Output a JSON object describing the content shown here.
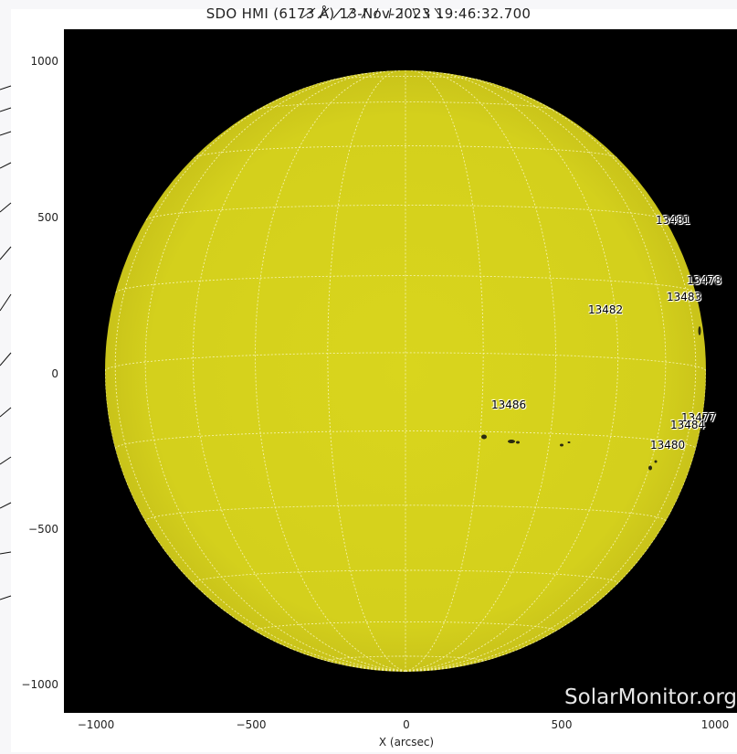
{
  "title": "SDO HMI (6173 Å) 13-Nov-2023 19:46:32.700",
  "axes": {
    "xlabel": "X (arcsec)",
    "x_ticks": [
      "−1000",
      "−500",
      "0",
      "500",
      "1000"
    ],
    "y_ticks": [
      "1000",
      "500",
      "0",
      "−500",
      "−1000"
    ]
  },
  "watermark": "SolarMonitor.org",
  "regions": [
    {
      "id": "13481"
    },
    {
      "id": "13478"
    },
    {
      "id": "13483"
    },
    {
      "id": "13482"
    },
    {
      "id": "13486"
    },
    {
      "id": "13477"
    },
    {
      "id": "13484"
    },
    {
      "id": "13480"
    }
  ],
  "colors": {
    "disk": "#d6d21c",
    "grid": "#f4f1a6",
    "background": "#000000"
  }
}
